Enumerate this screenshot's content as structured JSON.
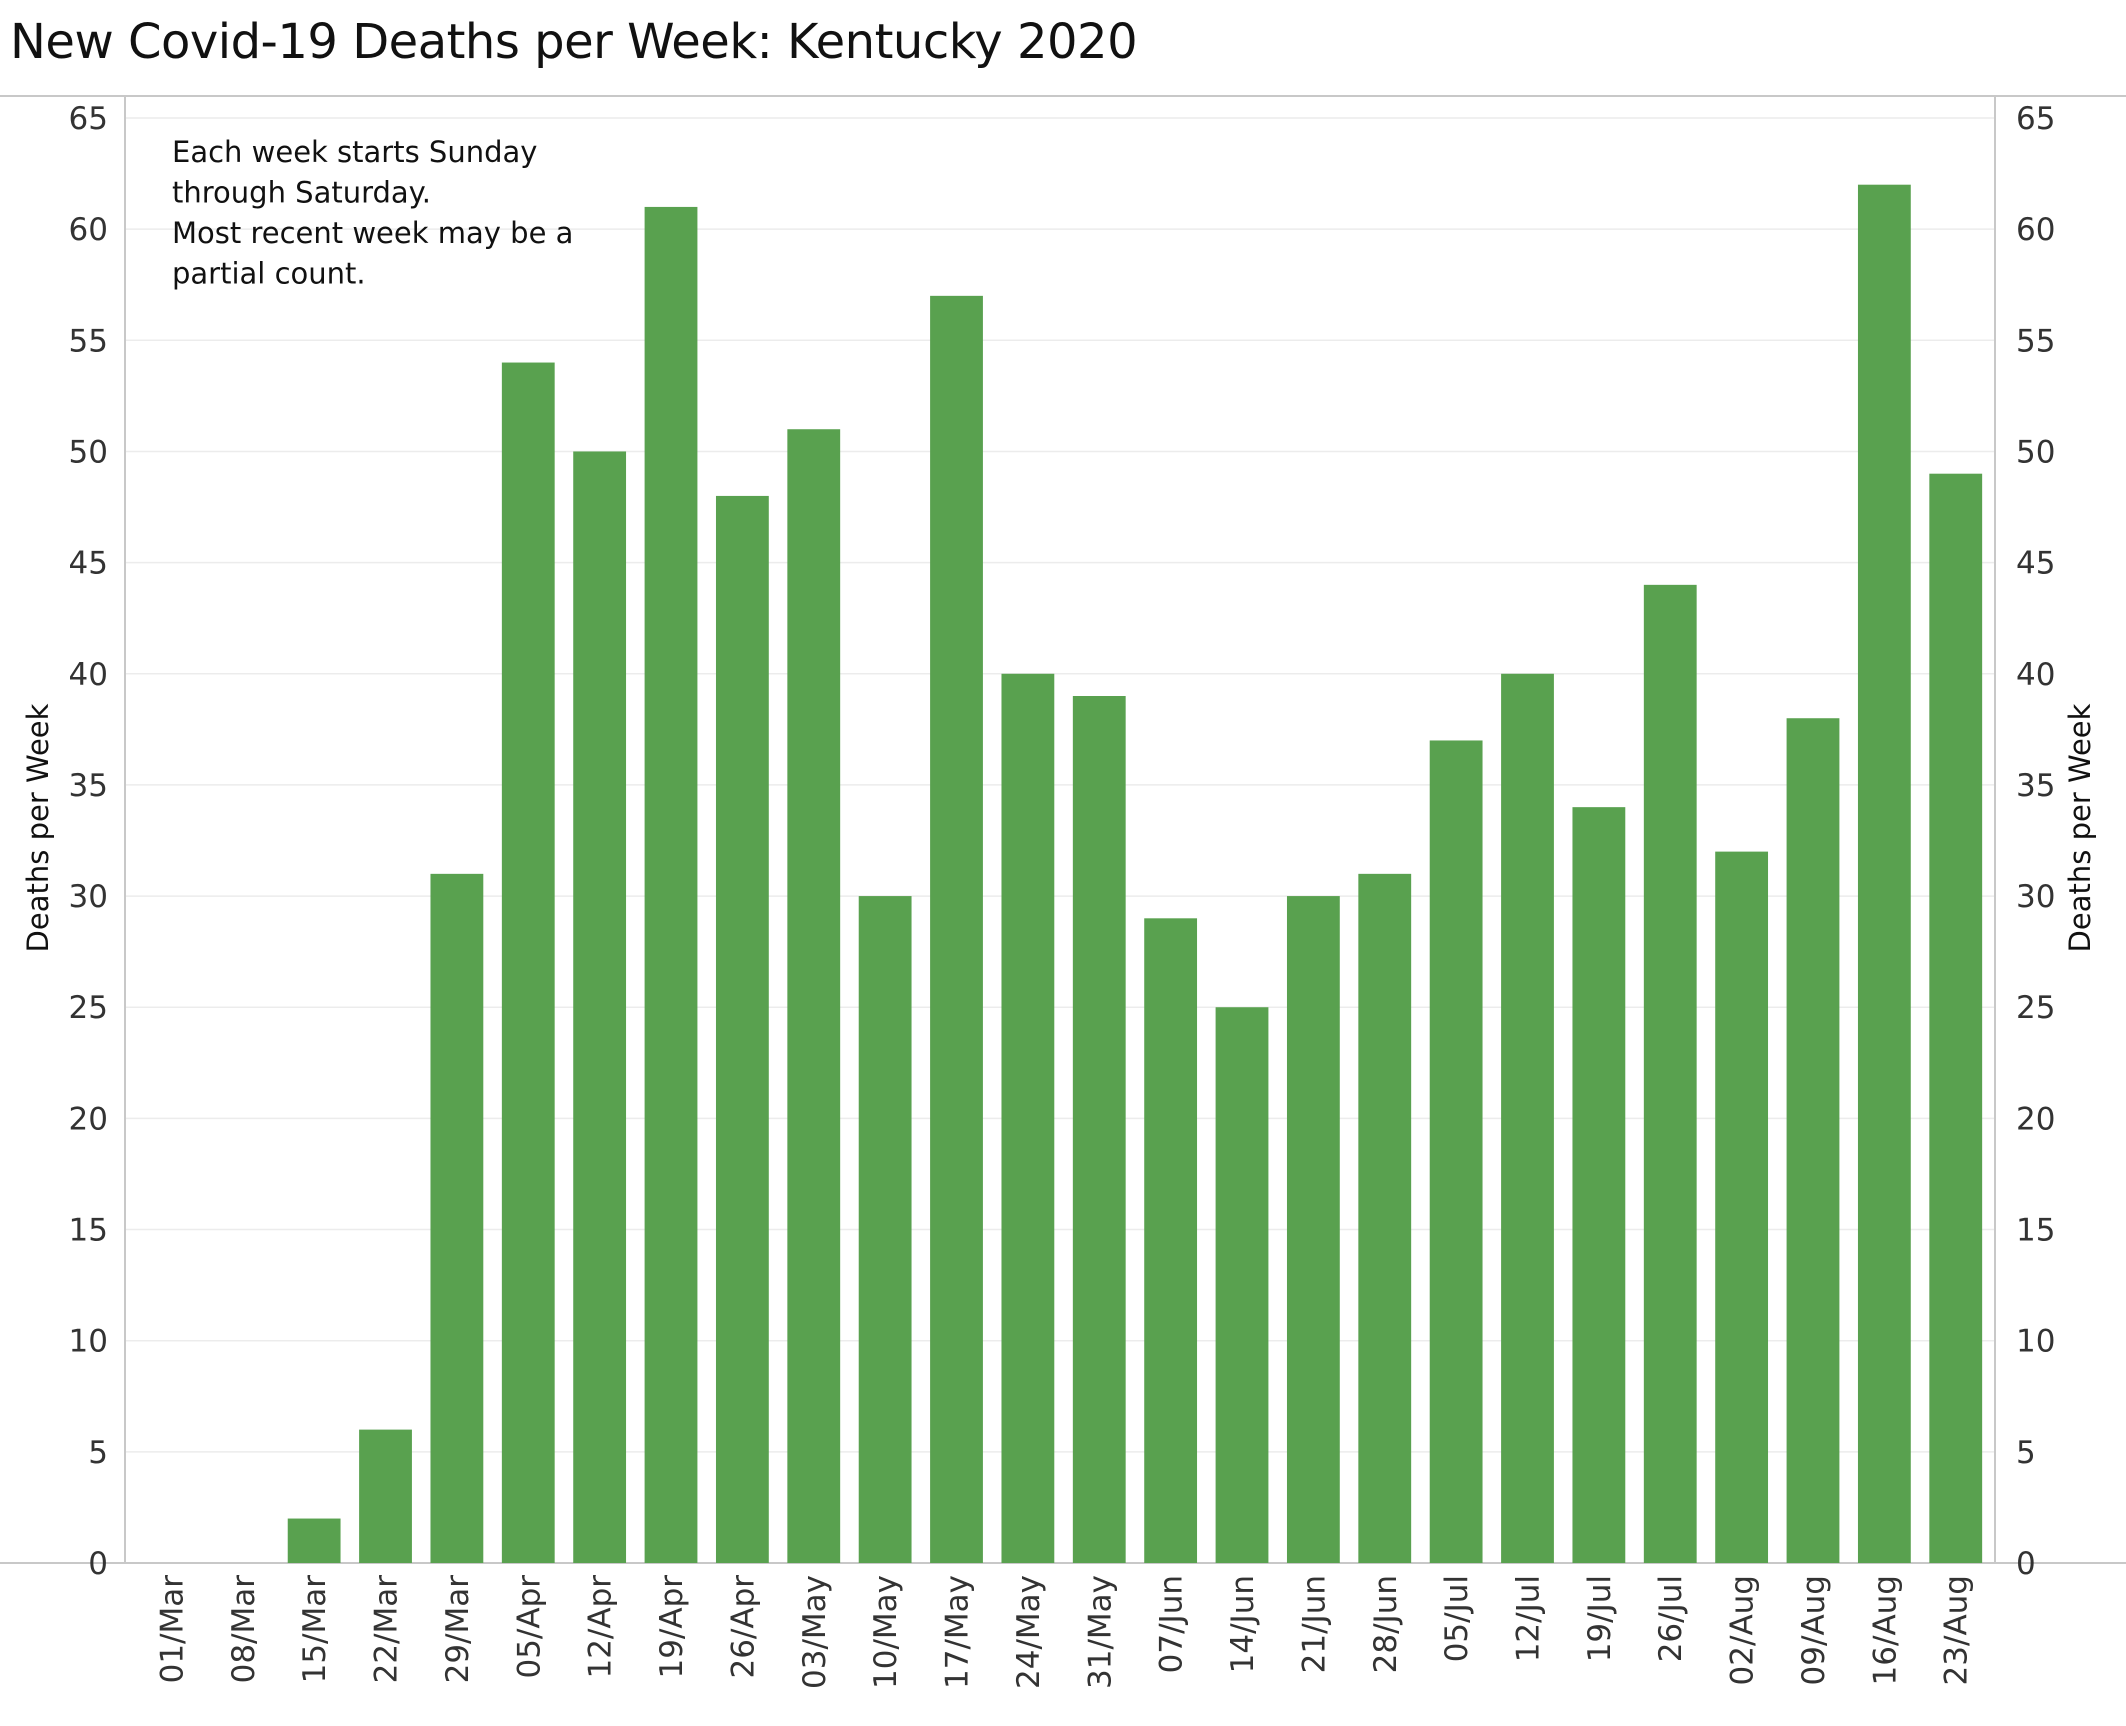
{
  "chart_data": {
    "type": "bar",
    "title": "New Covid-19 Deaths per Week:  Kentucky 2020",
    "xlabel": "",
    "ylabel": "Deaths per Week",
    "ylabel_right": "Deaths per Week",
    "ylim": [
      0,
      65
    ],
    "yticks": [
      0,
      5,
      10,
      15,
      20,
      25,
      30,
      35,
      40,
      45,
      50,
      55,
      60,
      65
    ],
    "grid": true,
    "legend": "none",
    "annotation": [
      "Each week starts Sunday",
      "through Saturday.",
      "Most recent week may be a",
      "partial count."
    ],
    "categories": [
      "01/Mar",
      "08/Mar",
      "15/Mar",
      "22/Mar",
      "29/Mar",
      "05/Apr",
      "12/Apr",
      "19/Apr",
      "26/Apr",
      "03/May",
      "10/May",
      "17/May",
      "24/May",
      "31/May",
      "07/Jun",
      "14/Jun",
      "21/Jun",
      "28/Jun",
      "05/Jul",
      "12/Jul",
      "19/Jul",
      "26/Jul",
      "02/Aug",
      "09/Aug",
      "16/Aug",
      "23/Aug"
    ],
    "values": [
      0,
      0,
      2,
      6,
      31,
      54,
      50,
      61,
      48,
      51,
      30,
      57,
      40,
      39,
      29,
      25,
      30,
      31,
      37,
      40,
      34,
      44,
      32,
      38,
      62,
      49
    ],
    "colors": {
      "bar": "#59a14f",
      "gridline": "#ececec",
      "axis_line": "#c8c8c8"
    }
  }
}
